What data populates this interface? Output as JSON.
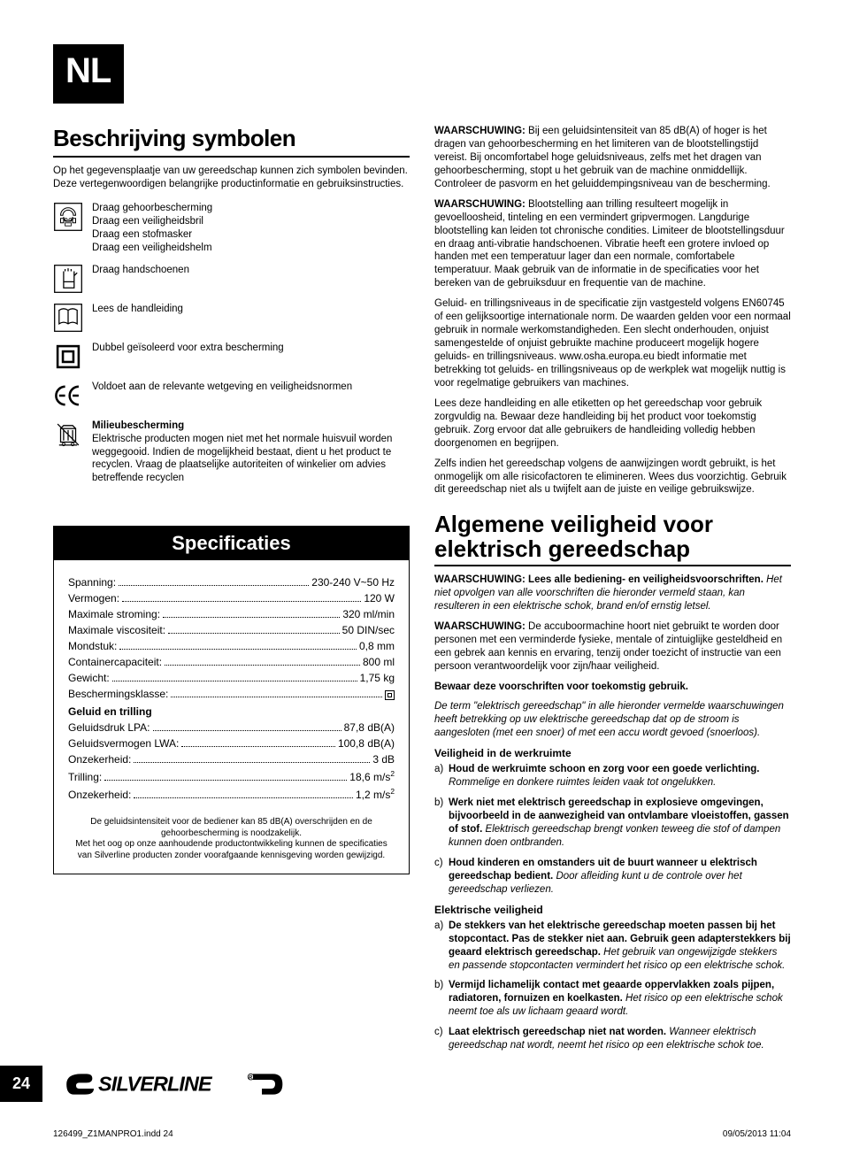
{
  "header": {
    "lang": "NL"
  },
  "left": {
    "title": "Beschrijving symbolen",
    "intro": "Op het gegevensplaatje van uw gereedschap kunnen zich symbolen bevinden. Deze vertegenwoordigen belangrijke productinformatie en gebruiksinstructies.",
    "symbols": [
      {
        "icon": "ppe",
        "lines": [
          "Draag gehoorbescherming",
          "Draag een veiligheidsbril",
          "Draag een stofmasker",
          "Draag een veiligheidshelm"
        ]
      },
      {
        "icon": "gloves",
        "lines": [
          "Draag handschoenen"
        ]
      },
      {
        "icon": "manual",
        "lines": [
          "Lees de handleiding"
        ]
      },
      {
        "icon": "double-insulated",
        "lines": [
          "Dubbel geïsoleerd voor extra bescherming"
        ]
      },
      {
        "icon": "ce",
        "lines": [
          "Voldoet aan de relevante wetgeving en veiligheidsnormen"
        ]
      },
      {
        "icon": "weee",
        "title": "Milieubescherming",
        "lines": [
          "Elektrische producten mogen niet met het normale huisvuil worden weggegooid. Indien de mogelijkheid bestaat, dient u het product te recyclen. Vraag de plaatselijke autoriteiten of winkelier om advies betreffende recyclen"
        ]
      }
    ],
    "spec": {
      "title": "Specificaties",
      "rows": [
        {
          "label": "Spanning:",
          "value": "230-240 V~50 Hz"
        },
        {
          "label": "Vermogen:",
          "value": "120 W"
        },
        {
          "label": "Maximale stroming:",
          "value": "320 ml/min"
        },
        {
          "label": "Maximale viscositeit:",
          "value": "50 DIN/sec"
        },
        {
          "label": "Mondstuk:",
          "value": "0,8 mm"
        },
        {
          "label": "Containercapaciteit:",
          "value": "800 ml"
        },
        {
          "label": "Gewicht:",
          "value": "1,75 kg"
        },
        {
          "label": "Beschermingsklasse:",
          "value": "□"
        }
      ],
      "subhead": "Geluid en trilling",
      "rows2": [
        {
          "label": "Geluidsdruk LPA:",
          "value": "87,8 dB(A)"
        },
        {
          "label": "Geluidsvermogen LWA:",
          "value": "100,8 dB(A)"
        },
        {
          "label": "Onzekerheid:",
          "value": "3 dB"
        },
        {
          "label": "Trilling:",
          "value": "18,6 m/s²"
        },
        {
          "label": "Onzekerheid:",
          "value": "1,2 m/s²"
        }
      ],
      "note": "De geluidsintensiteit voor de bediener kan 85 dB(A) overschrijden en de gehoorbescherming is noodzakelijk.\nMet het oog op onze aanhoudende productontwikkeling kunnen de specificaties van Silverline producten zonder voorafgaande kennisgeving worden gewijzigd."
    }
  },
  "right": {
    "paras": [
      {
        "w": "WAARSCHUWING:",
        "t": "Bij een geluidsintensiteit van 85 dB(A) of hoger is het dragen van gehoorbescherming en het limiteren van de blootstellingstijd vereist. Bij oncomfortabel hoge geluidsniveaus, zelfs met het dragen van gehoorbescherming, stopt u het gebruik van de machine onmiddellijk. Controleer de pasvorm en het geluiddempingsniveau van de bescherming."
      },
      {
        "w": "WAARSCHUWING:",
        "t": "Blootstelling aan trilling resulteert mogelijk in gevoelloosheid, tinteling en een vermindert gripvermogen. Langdurige blootstelling kan leiden tot chronische condities. Limiteer de blootstellingsduur en draag anti-vibratie handschoenen. Vibratie heeft een grotere invloed op handen met een temperatuur lager dan een normale, comfortabele temperatuur. Maak gebruik van de informatie in de specificaties voor het bereken van de gebruiksduur en frequentie van de machine."
      },
      {
        "t": "Geluid- en trillingsniveaus in de specificatie zijn vastgesteld volgens EN60745 of een gelijksoortige internationale norm. De waarden gelden voor een normaal gebruik in normale werkomstandigheden. Een slecht onderhouden, onjuist samengestelde of onjuist gebruikte machine produceert mogelijk hogere geluids- en trillingsniveaus. www.osha.europa.eu biedt informatie met betrekking tot geluids- en trillingsniveaus op de werkplek wat mogelijk nuttig is voor regelmatige gebruikers van machines."
      },
      {
        "t": "Lees deze handleiding en alle etiketten op het gereedschap voor gebruik zorgvuldig na. Bewaar deze handleiding bij het product voor toekomstig gebruik. Zorg ervoor dat alle gebruikers de handleiding volledig hebben doorgenomen en begrijpen."
      },
      {
        "t": "Zelfs indien het gereedschap volgens de aanwijzingen wordt gebruikt, is het onmogelijk om alle risicofactoren te elimineren. Wees dus voorzichtig. Gebruik dit gereedschap niet als u twijfelt aan de juiste en veilige gebruikswijze."
      }
    ],
    "title": "Algemene veiligheid voor elektrisch gereedschap",
    "after_title": [
      {
        "w": "WAARSCHUWING: Lees alle bediening- en veiligheidsvoorschriften.",
        "i": "Het niet opvolgen van alle voorschriften die hieronder vermeld staan, kan resulteren in een elektrische schok, brand en/of ernstig letsel."
      },
      {
        "w": "WAARSCHUWING:",
        "t": "De accuboormachine hoort niet gebruikt te worden door personen met een verminderde fysieke, mentale of zintuiglijke gesteldheid en een gebrek aan kennis en ervaring, tenzij onder toezicht of instructie van een persoon verantwoordelijk voor zijn/haar veiligheid."
      },
      {
        "b": "Bewaar deze voorschriften voor toekomstig gebruik."
      },
      {
        "i": "De term \"elektrisch gereedschap\" in alle hieronder vermelde waarschuwingen heeft betrekking op uw elektrische gereedschap dat op de stroom is aangesloten (met een snoer) of met een accu wordt gevoed (snoerloos)."
      }
    ],
    "lists": [
      {
        "head": "Veiligheid in de werkruimte",
        "items": [
          {
            "lbl": "a)",
            "lead": "Houd de werkruimte schoon en zorg voor een goede verlichting.",
            "tail": "Rommelige en donkere ruimtes leiden vaak tot ongelukken."
          },
          {
            "lbl": "b)",
            "lead": "Werk niet met elektrisch gereedschap in explosieve omgevingen, bijvoorbeeld in de aanwezigheid van ontvlambare vloeistoffen, gassen of stof.",
            "tail": "Elektrisch gereedschap brengt vonken teweeg die stof of dampen kunnen doen ontbranden."
          },
          {
            "lbl": "c)",
            "lead": "Houd kinderen en omstanders uit de buurt wanneer u elektrisch gereedschap bedient.",
            "tail": "Door afleiding kunt u de controle over het gereedschap verliezen."
          }
        ]
      },
      {
        "head": "Elektrische veiligheid",
        "items": [
          {
            "lbl": "a)",
            "lead": "De stekkers van het elektrische gereedschap moeten passen bij het stopcontact. Pas de stekker niet aan. Gebruik geen adapterstekkers bij geaard elektrisch gereedschap.",
            "tail": "Het gebruik van ongewijzigde stekkers en passende stopcontacten vermindert het risico op een elektrische schok."
          },
          {
            "lbl": "b)",
            "lead": "Vermijd lichamelijk contact met geaarde oppervlakken zoals pijpen, radiatoren, fornuizen en koelkasten.",
            "tail": "Het risico op een elektrische schok neemt toe als uw lichaam geaard wordt."
          },
          {
            "lbl": "c)",
            "lead": "Laat elektrisch gereedschap niet nat worden.",
            "tail": "Wanneer elektrisch gereedschap nat wordt, neemt het risico op een elektrische schok toe."
          }
        ]
      }
    ]
  },
  "footer": {
    "page": "24",
    "brand": "SILVERLINE",
    "print_file": "126499_Z1MANPRO1.indd   24",
    "print_time": "09/05/2013   11:04"
  }
}
